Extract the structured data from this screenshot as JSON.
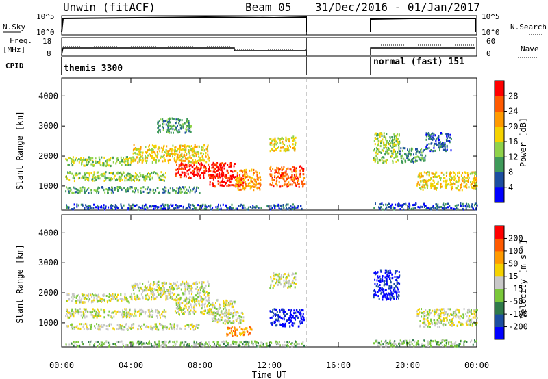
{
  "header": {
    "title": "Unwin (fitACF)",
    "beam": "Beam 05",
    "date_range": "31/Dec/2016 - 01/Jan/2017"
  },
  "sky_panel": {
    "left_label": "N.Sky",
    "left_ticks": [
      "10^5",
      "10^0"
    ],
    "right_ticks": [
      "10^5",
      "10^0"
    ],
    "right_label": "N.Search"
  },
  "freq_panel": {
    "left_label_line1": "Freq.",
    "left_label_line2": "[MHz]",
    "left_ticks": [
      "18",
      "8"
    ],
    "right_ticks": [
      "60",
      "0"
    ],
    "right_label": "Nave"
  },
  "cpid_panel": {
    "label": "CPID",
    "mode1": "themis 3300",
    "mode2": "normal (fast) 151"
  },
  "chart_data": [
    {
      "type": "heatmap",
      "name": "power",
      "ylabel": "Slant Range [km]",
      "yticks": [
        1000,
        2000,
        3000,
        4000
      ],
      "ylim": [
        200,
        4600
      ],
      "xlim_hours": [
        0,
        24
      ],
      "colorbar": {
        "label": "Power [dB]",
        "ticks": [
          "4",
          "8",
          "12",
          "16",
          "20",
          "24",
          "28"
        ],
        "colors": [
          "#0000ff",
          "#1c4ea0",
          "#3f9a5a",
          "#8fd24a",
          "#f5d200",
          "#ff9a00",
          "#ff5a00",
          "#ff0000"
        ]
      },
      "bands": [
        {
          "x": [
            0.2,
            14.0
          ],
          "y": [
            250,
            420
          ],
          "level": 1
        },
        {
          "x": [
            0.2,
            8.0
          ],
          "y": [
            800,
            1000
          ],
          "level": 2
        },
        {
          "x": [
            0.2,
            6.0
          ],
          "y": [
            1200,
            1500
          ],
          "level": 3
        },
        {
          "x": [
            0.2,
            4.0
          ],
          "y": [
            1700,
            2000
          ],
          "level": 3
        },
        {
          "x": [
            4.0,
            8.5
          ],
          "y": [
            1800,
            2400
          ],
          "level": 4
        },
        {
          "x": [
            6.5,
            10.0
          ],
          "y": [
            1300,
            1800
          ],
          "level": 7
        },
        {
          "x": [
            8.5,
            10.5
          ],
          "y": [
            1000,
            1400
          ],
          "level": 7
        },
        {
          "x": [
            10.0,
            11.5
          ],
          "y": [
            900,
            1600
          ],
          "level": 5
        },
        {
          "x": [
            12.0,
            14.0
          ],
          "y": [
            1000,
            1700
          ],
          "level": 6
        },
        {
          "x": [
            12.0,
            13.5
          ],
          "y": [
            2200,
            2700
          ],
          "level": 4
        },
        {
          "x": [
            5.5,
            7.5
          ],
          "y": [
            2800,
            3300
          ],
          "level": 2
        },
        {
          "x": [
            18.0,
            19.5
          ],
          "y": [
            1800,
            2800
          ],
          "level": 3
        },
        {
          "x": [
            19.5,
            21.0
          ],
          "y": [
            1800,
            2300
          ],
          "level": 2
        },
        {
          "x": [
            20.5,
            24.0
          ],
          "y": [
            900,
            1500
          ],
          "level": 4
        },
        {
          "x": [
            18.0,
            24.0
          ],
          "y": [
            250,
            450
          ],
          "level": 1
        },
        {
          "x": [
            21.0,
            22.5
          ],
          "y": [
            2200,
            2800
          ],
          "level": 1
        }
      ]
    },
    {
      "type": "heatmap",
      "name": "velocity",
      "ylabel": "Slant Range [km]",
      "xlabel": "Time UT",
      "yticks": [
        1000,
        2000,
        3000,
        4000
      ],
      "ylim": [
        200,
        4600
      ],
      "xlim_hours": [
        0,
        24
      ],
      "xticks": [
        "00:00",
        "04:00",
        "08:00",
        "12:00",
        "16:00",
        "20:00",
        "00:00"
      ],
      "colorbar": {
        "label": "Velocity [m s⁻¹]",
        "ticks": [
          "200",
          "100",
          "50",
          "15",
          "-15",
          "-50",
          "-100",
          "-200"
        ],
        "colors": [
          "#0000ff",
          "#1c4ea0",
          "#2f7a4a",
          "#7ac83a",
          "#c8c8c8",
          "#f5d200",
          "#ff9a00",
          "#ff5a00",
          "#ff0000"
        ]
      },
      "bands": [
        {
          "x": [
            0.2,
            14.0
          ],
          "y": [
            250,
            420
          ],
          "level": 3
        },
        {
          "x": [
            0.2,
            8.0
          ],
          "y": [
            800,
            1000
          ],
          "level": 4
        },
        {
          "x": [
            0.2,
            6.0
          ],
          "y": [
            1200,
            1500
          ],
          "level": 4
        },
        {
          "x": [
            0.2,
            4.0
          ],
          "y": [
            1700,
            2000
          ],
          "level": 4
        },
        {
          "x": [
            4.0,
            8.5
          ],
          "y": [
            1800,
            2400
          ],
          "level": 4
        },
        {
          "x": [
            6.5,
            10.0
          ],
          "y": [
            1300,
            1800
          ],
          "level": 4
        },
        {
          "x": [
            8.5,
            10.5
          ],
          "y": [
            1000,
            1400
          ],
          "level": 4
        },
        {
          "x": [
            9.5,
            11.0
          ],
          "y": [
            600,
            900
          ],
          "level": 6
        },
        {
          "x": [
            12.0,
            14.0
          ],
          "y": [
            900,
            1500
          ],
          "level": 0
        },
        {
          "x": [
            12.0,
            13.5
          ],
          "y": [
            2200,
            2700
          ],
          "level": 4
        },
        {
          "x": [
            18.0,
            19.5
          ],
          "y": [
            1800,
            2800
          ],
          "level": 0
        },
        {
          "x": [
            20.5,
            24.0
          ],
          "y": [
            900,
            1500
          ],
          "level": 4
        },
        {
          "x": [
            18.0,
            24.0
          ],
          "y": [
            250,
            450
          ],
          "level": 3
        }
      ]
    }
  ]
}
